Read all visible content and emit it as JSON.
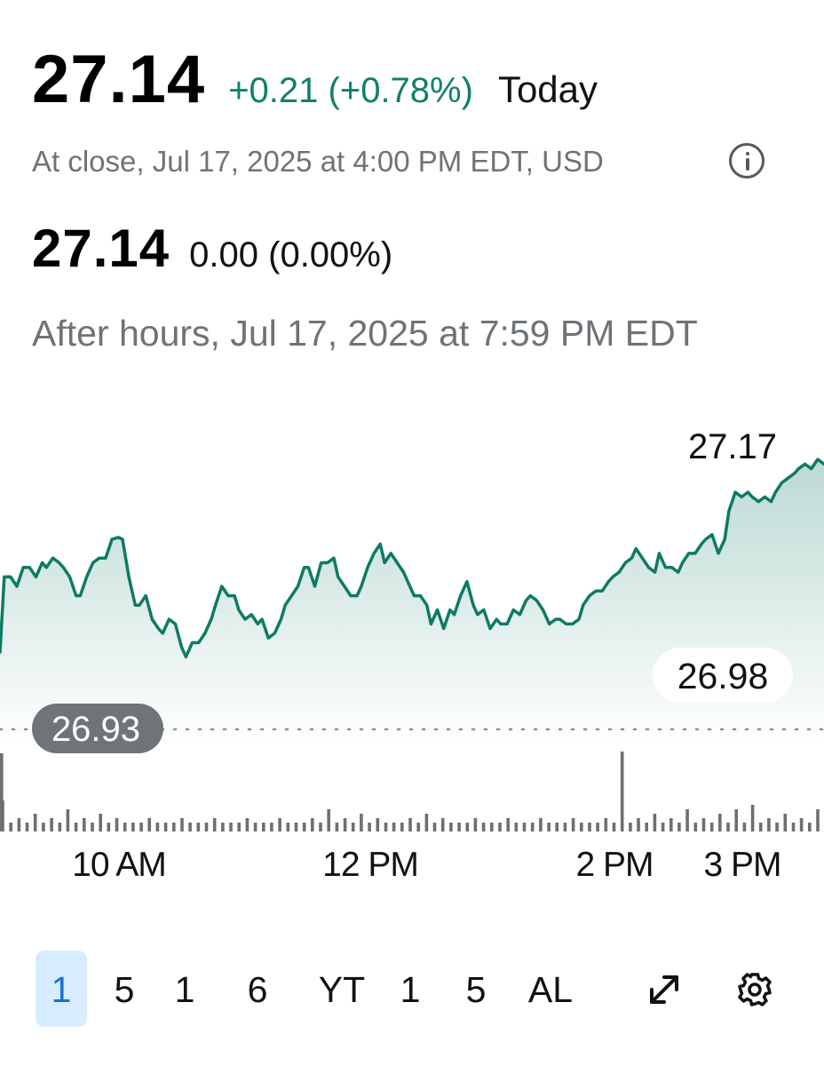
{
  "quote": {
    "price": "27.14",
    "change": "+0.21 (+0.78%)",
    "period": "Today",
    "close_meta": "At close, Jul 17, 2025 at 4:00 PM EDT, USD"
  },
  "after_hours": {
    "price": "27.14",
    "change": "0.00 (0.00%)",
    "meta": "After hours, Jul 17, 2025 at 7:59 PM EDT"
  },
  "colors": {
    "positive": "#10806a",
    "line": "#0f7a63",
    "active_range_bg": "#d8ecff",
    "active_range_text": "#1d6fd6",
    "prev_close_pill": "#6f7479"
  },
  "chart_data": {
    "type": "area",
    "x_unit": "minutes since 9:30 AM",
    "x_range": [
      0,
      390
    ],
    "y_range": [
      26.86,
      27.2
    ],
    "points": [
      [
        0,
        26.96
      ],
      [
        2,
        27.04
      ],
      [
        5,
        27.04
      ],
      [
        8,
        27.03
      ],
      [
        11,
        27.05
      ],
      [
        14,
        27.05
      ],
      [
        17,
        27.04
      ],
      [
        20,
        27.055
      ],
      [
        22,
        27.05
      ],
      [
        25,
        27.06
      ],
      [
        28,
        27.055
      ],
      [
        30,
        27.05
      ],
      [
        33,
        27.04
      ],
      [
        36,
        27.02
      ],
      [
        38,
        27.02
      ],
      [
        41,
        27.04
      ],
      [
        44,
        27.055
      ],
      [
        47,
        27.06
      ],
      [
        50,
        27.06
      ],
      [
        53,
        27.08
      ],
      [
        56,
        27.082
      ],
      [
        58,
        27.08
      ],
      [
        61,
        27.04
      ],
      [
        64,
        27.01
      ],
      [
        66,
        27.01
      ],
      [
        69,
        27.02
      ],
      [
        72,
        26.995
      ],
      [
        75,
        26.985
      ],
      [
        77,
        26.98
      ],
      [
        80,
        26.995
      ],
      [
        83,
        26.99
      ],
      [
        86,
        26.965
      ],
      [
        88,
        26.955
      ],
      [
        91,
        26.97
      ],
      [
        94,
        26.97
      ],
      [
        97,
        26.98
      ],
      [
        100,
        26.995
      ],
      [
        102,
        27.01
      ],
      [
        105,
        27.03
      ],
      [
        108,
        27.02
      ],
      [
        111,
        27.02
      ],
      [
        113,
        27.005
      ],
      [
        116,
        26.995
      ],
      [
        119,
        27.0
      ],
      [
        122,
        26.99
      ],
      [
        124,
        26.995
      ],
      [
        127,
        26.975
      ],
      [
        130,
        26.98
      ],
      [
        133,
        26.995
      ],
      [
        135,
        27.01
      ],
      [
        138,
        27.02
      ],
      [
        141,
        27.03
      ],
      [
        144,
        27.05
      ],
      [
        146,
        27.05
      ],
      [
        149,
        27.03
      ],
      [
        152,
        27.055
      ],
      [
        155,
        27.055
      ],
      [
        158,
        27.06
      ],
      [
        160,
        27.04
      ],
      [
        163,
        27.03
      ],
      [
        166,
        27.02
      ],
      [
        169,
        27.02
      ],
      [
        171,
        27.03
      ],
      [
        174,
        27.05
      ],
      [
        177,
        27.065
      ],
      [
        180,
        27.075
      ],
      [
        182,
        27.055
      ],
      [
        185,
        27.065
      ],
      [
        188,
        27.055
      ],
      [
        191,
        27.045
      ],
      [
        193,
        27.035
      ],
      [
        196,
        27.02
      ],
      [
        199,
        27.02
      ],
      [
        202,
        27.01
      ],
      [
        204,
        26.99
      ],
      [
        207,
        27.005
      ],
      [
        210,
        26.985
      ],
      [
        213,
        27.005
      ],
      [
        215,
        27.0
      ],
      [
        218,
        27.02
      ],
      [
        221,
        27.035
      ],
      [
        224,
        27.01
      ],
      [
        226,
        27.0
      ],
      [
        229,
        27.005
      ],
      [
        232,
        26.985
      ],
      [
        235,
        26.995
      ],
      [
        237,
        26.99
      ],
      [
        240,
        26.99
      ],
      [
        243,
        27.005
      ],
      [
        246,
        27.0
      ],
      [
        249,
        27.015
      ],
      [
        251,
        27.02
      ],
      [
        254,
        27.015
      ],
      [
        257,
        27.005
      ],
      [
        260,
        26.99
      ],
      [
        263,
        26.995
      ],
      [
        265,
        26.995
      ],
      [
        268,
        26.99
      ],
      [
        271,
        26.99
      ],
      [
        274,
        26.995
      ],
      [
        276,
        27.01
      ],
      [
        279,
        27.02
      ],
      [
        282,
        27.025
      ],
      [
        285,
        27.025
      ],
      [
        288,
        27.035
      ],
      [
        290,
        27.04
      ],
      [
        293,
        27.045
      ],
      [
        296,
        27.055
      ],
      [
        299,
        27.06
      ],
      [
        301,
        27.07
      ],
      [
        304,
        27.06
      ],
      [
        307,
        27.05
      ],
      [
        310,
        27.045
      ],
      [
        312,
        27.065
      ],
      [
        315,
        27.05
      ],
      [
        318,
        27.05
      ],
      [
        321,
        27.045
      ],
      [
        323,
        27.055
      ],
      [
        326,
        27.065
      ],
      [
        329,
        27.065
      ],
      [
        332,
        27.075
      ],
      [
        334,
        27.08
      ],
      [
        337,
        27.085
      ],
      [
        340,
        27.065
      ],
      [
        343,
        27.08
      ],
      [
        345,
        27.11
      ],
      [
        348,
        27.13
      ],
      [
        351,
        27.125
      ],
      [
        354,
        27.13
      ],
      [
        356,
        27.125
      ],
      [
        359,
        27.12
      ],
      [
        362,
        27.125
      ],
      [
        365,
        27.12
      ],
      [
        367,
        27.13
      ],
      [
        370,
        27.14
      ],
      [
        373,
        27.145
      ],
      [
        376,
        27.15
      ],
      [
        378,
        27.155
      ],
      [
        381,
        27.16
      ],
      [
        384,
        27.155
      ],
      [
        387,
        27.165
      ],
      [
        390,
        27.16
      ]
    ],
    "high_label": "27.17",
    "low_label": "26.98",
    "prev_close_label": "26.93",
    "x_tick_labels": [
      {
        "label": "10 AM",
        "minute": 30
      },
      {
        "label": "12 PM",
        "minute": 150
      },
      {
        "label": "2 PM",
        "minute": 270
      },
      {
        "label": "3 PM",
        "minute": 330
      }
    ],
    "volume": [
      7,
      2,
      3,
      2,
      4,
      2,
      3,
      2,
      5,
      2,
      3,
      2,
      4,
      2,
      3,
      2,
      2,
      2,
      3,
      2,
      2,
      2,
      3,
      2,
      2,
      2,
      3,
      2,
      2,
      2,
      3,
      2,
      2,
      2,
      3,
      2,
      2,
      2,
      3,
      2,
      5,
      2,
      3,
      2,
      4,
      2,
      3,
      2,
      2,
      2,
      3,
      2,
      4,
      2,
      3,
      2,
      2,
      2,
      3,
      2,
      2,
      2,
      3,
      2,
      2,
      2,
      3,
      2,
      2,
      2,
      3,
      2,
      2,
      2,
      3,
      2,
      18,
      2,
      3,
      2,
      4,
      2,
      3,
      2,
      5,
      2,
      3,
      2,
      4,
      2,
      5,
      2,
      6,
      2,
      3,
      2,
      4,
      2,
      3,
      2,
      5
    ],
    "grid": false
  },
  "ranges": [
    {
      "label": "1",
      "active": true
    },
    {
      "label": "5",
      "active": false
    },
    {
      "label": "1",
      "active": false
    },
    {
      "label": "6",
      "active": false
    },
    {
      "label": "YT",
      "active": false
    },
    {
      "label": "1",
      "active": false
    },
    {
      "label": "5",
      "active": false
    },
    {
      "label": "AL",
      "active": false
    }
  ],
  "tools": {
    "expand": "expand-icon",
    "settings": "gear-icon"
  }
}
